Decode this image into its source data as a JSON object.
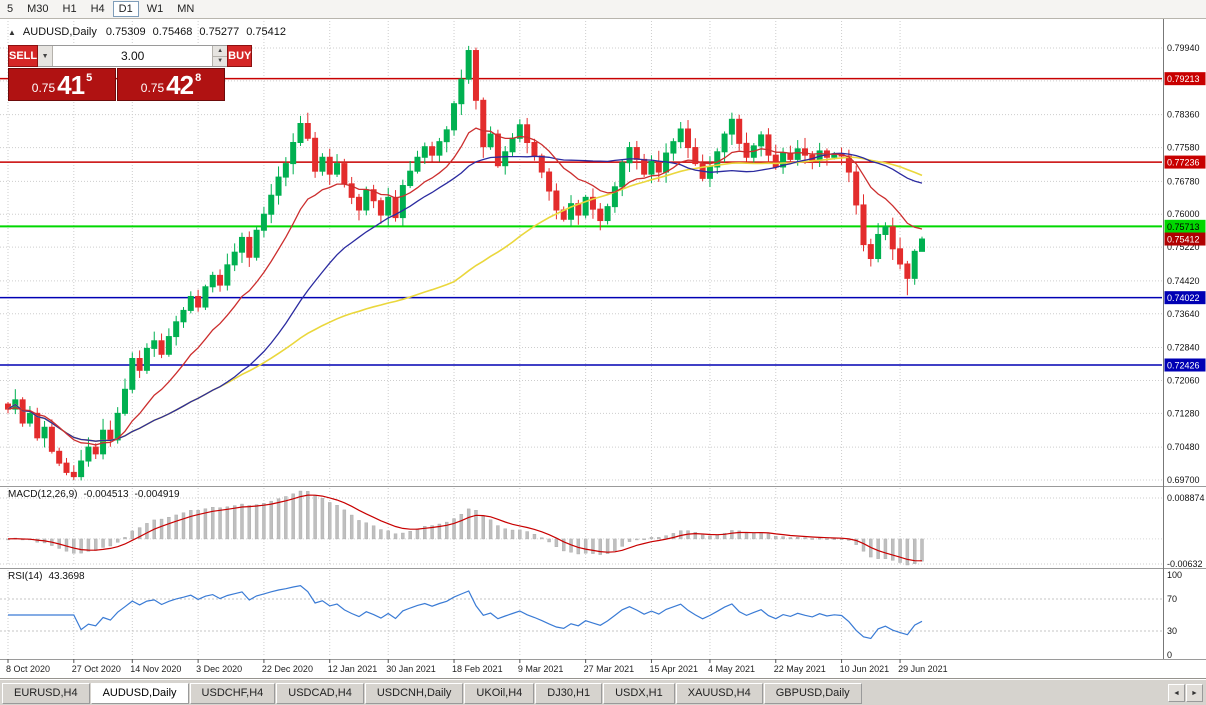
{
  "toolbar": {
    "timeframes": [
      "5",
      "M30",
      "H1",
      "H4",
      "D1",
      "W1",
      "MN"
    ],
    "active": "D1"
  },
  "title": {
    "collapse_icon": "▲",
    "symbol": "AUDUSD,Daily",
    "open": "0.75309",
    "high": "0.75468",
    "low": "0.75277",
    "close": "0.75412"
  },
  "one_click": {
    "sell_label": "SELL",
    "buy_label": "BUY",
    "volume": "3.00",
    "volume_dropdown_icon": "▼",
    "spinner_up_icon": "▲",
    "spinner_down_icon": "▼",
    "sell_price": {
      "prefix": "0.75",
      "big": "41",
      "sup": "5"
    },
    "buy_price": {
      "prefix": "0.75",
      "big": "42",
      "sup": "8"
    }
  },
  "chart_data": {
    "type": "candlestick",
    "symbol": "AUDUSD",
    "timeframe": "Daily",
    "up_color": "#00b050",
    "down_color": "#e32c2c",
    "grid_color": "#cdcdcd",
    "y_axis": {
      "labels": [
        "0.79940",
        "0.79160",
        "0.78360",
        "0.77580",
        "0.76780",
        "0.76000",
        "0.75220",
        "0.74420",
        "0.73640",
        "0.72840",
        "0.72060",
        "0.71280",
        "0.70480",
        "0.69700"
      ],
      "values": [
        0.7994,
        0.7916,
        0.7836,
        0.7758,
        0.7678,
        0.76,
        0.7522,
        0.7442,
        0.7364,
        0.7284,
        0.7206,
        0.7128,
        0.7048,
        0.697
      ]
    },
    "x_ticks": [
      {
        "index": 0,
        "label": "8 Oct 2020"
      },
      {
        "index": 9,
        "label": "27 Oct 2020"
      },
      {
        "index": 17,
        "label": "14 Nov 2020"
      },
      {
        "index": 26,
        "label": "3 Dec 2020"
      },
      {
        "index": 35,
        "label": "22 Dec 2020"
      },
      {
        "index": 44,
        "label": "12 Jan 2021"
      },
      {
        "index": 52,
        "label": "30 Jan 2021"
      },
      {
        "index": 61,
        "label": "18 Feb 2021"
      },
      {
        "index": 70,
        "label": "9 Mar 2021"
      },
      {
        "index": 79,
        "label": "27 Mar 2021"
      },
      {
        "index": 88,
        "label": "15 Apr 2021"
      },
      {
        "index": 96,
        "label": "4 May 2021"
      },
      {
        "index": 105,
        "label": "22 May 2021"
      },
      {
        "index": 114,
        "label": "10 Jun 2021"
      },
      {
        "index": 122,
        "label": "29 Jun 2021"
      }
    ],
    "levels": [
      {
        "price": 0.79213,
        "label": "0.79213",
        "color": "#c80000",
        "width": 1.5,
        "label_text_color": "#ffffff"
      },
      {
        "price": 0.77236,
        "label": "0.77236",
        "color": "#c80000",
        "width": 1.5,
        "label_text_color": "#ffffff"
      },
      {
        "price": 0.75713,
        "label": "0.75713",
        "color": "#00d800",
        "width": 2,
        "label_text_color": "#000000"
      },
      {
        "price": 0.74022,
        "label": "0.74022",
        "color": "#0000b4",
        "width": 1.5,
        "label_text_color": "#ffffff"
      },
      {
        "price": 0.72426,
        "label": "0.72426",
        "color": "#0000b4",
        "width": 1.5,
        "label_text_color": "#ffffff"
      }
    ],
    "bid": {
      "price": 0.75412,
      "label": "0.75412",
      "color": "#b00000",
      "label_text_color": "#ffffff"
    },
    "candles": {
      "first_open": 0.715,
      "closes": [
        0.7138,
        0.716,
        0.7105,
        0.7128,
        0.707,
        0.7095,
        0.7038,
        0.701,
        0.6988,
        0.6978,
        0.7015,
        0.7048,
        0.7032,
        0.7088,
        0.7065,
        0.7128,
        0.7185,
        0.7258,
        0.723,
        0.7282,
        0.73,
        0.7268,
        0.731,
        0.7345,
        0.7372,
        0.7405,
        0.738,
        0.7428,
        0.7455,
        0.7432,
        0.748,
        0.751,
        0.7545,
        0.7498,
        0.7562,
        0.76,
        0.7645,
        0.7688,
        0.772,
        0.777,
        0.7815,
        0.778,
        0.7702,
        0.7735,
        0.7695,
        0.772,
        0.7672,
        0.764,
        0.761,
        0.7658,
        0.7632,
        0.7598,
        0.764,
        0.7592,
        0.7668,
        0.7702,
        0.7735,
        0.776,
        0.774,
        0.7772,
        0.78,
        0.7862,
        0.792,
        0.7988,
        0.787,
        0.776,
        0.779,
        0.7715,
        0.7748,
        0.778,
        0.7812,
        0.777,
        0.7738,
        0.77,
        0.7655,
        0.761,
        0.7588,
        0.7625,
        0.7598,
        0.764,
        0.7612,
        0.7585,
        0.7618,
        0.7665,
        0.7722,
        0.7758,
        0.773,
        0.7695,
        0.7725,
        0.77,
        0.7745,
        0.7772,
        0.7802,
        0.7758,
        0.772,
        0.7685,
        0.7712,
        0.7748,
        0.779,
        0.7825,
        0.7768,
        0.7735,
        0.7762,
        0.7788,
        0.774,
        0.7712,
        0.7745,
        0.773,
        0.7755,
        0.774,
        0.7728,
        0.775,
        0.7735,
        0.7742,
        0.7738,
        0.77,
        0.7622,
        0.7528,
        0.7495,
        0.7552,
        0.757,
        0.7518,
        0.7482,
        0.7448,
        0.7512,
        0.75412
      ],
      "wick_overrides": {
        "9": {
          "low": 0.697
        },
        "63": {
          "high": 0.7999
        },
        "123": {
          "low": 0.7408
        },
        "125": {
          "high": 0.75468,
          "low": 0.75277
        }
      }
    },
    "ma_lines": [
      {
        "name": "slow-ma",
        "color": "#ead73c"
      },
      {
        "name": "mid-ma",
        "color": "#2b2ba0"
      },
      {
        "name": "fast-ma",
        "color": "#cc2e2e"
      }
    ],
    "macd": {
      "label": "MACD(12,26,9)",
      "value_main": "-0.004513",
      "value_signal": "-0.004919",
      "axis_top": "0.008874",
      "axis_bottom": "-0.00632",
      "histogram_color": "#bfbfbf",
      "signal_color": "#c80000"
    },
    "rsi": {
      "label": "RSI(14)",
      "value": "43.3698",
      "axis_labels": [
        "100",
        "70",
        "30",
        "0"
      ],
      "axis_values": [
        100,
        70,
        30,
        0
      ],
      "level_lines": [
        70,
        30
      ],
      "color": "#3a7bd5"
    }
  },
  "tabs": {
    "items": [
      "EURUSD,H4",
      "AUDUSD,Daily",
      "USDCHF,H4",
      "USDCAD,H4",
      "USDCNH,Daily",
      "UKOil,H4",
      "DJ30,H1",
      "USDX,H1",
      "XAUUSD,H4",
      "GBPUSD,Daily"
    ],
    "active": "AUDUSD,Daily",
    "scroll_left_icon": "◄",
    "scroll_right_icon": "►"
  }
}
